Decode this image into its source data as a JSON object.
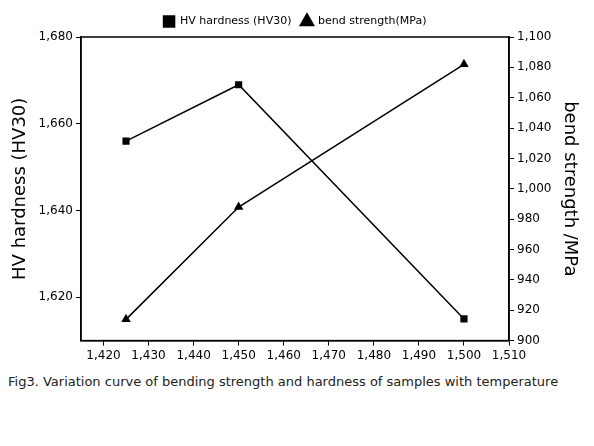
{
  "chart_data": {
    "type": "line",
    "title": "Fig3. Variation curve of bending strength and hardness of samples with temperature",
    "y_label": "HV hardness (HV30)",
    "y2_label": "bend strength /MPa",
    "x": [
      1425,
      1450,
      1500
    ],
    "xlim": [
      1415,
      1510
    ],
    "xticks": [
      1420,
      1430,
      1440,
      1450,
      1460,
      1470,
      1480,
      1490,
      1500,
      1510
    ],
    "ylim": [
      1610,
      1680
    ],
    "yticks": [
      1620,
      1640,
      1660,
      1680
    ],
    "y2lim": [
      900,
      1100
    ],
    "y2ticks": [
      900,
      920,
      940,
      960,
      980,
      1000,
      1020,
      1040,
      1060,
      1080,
      1100
    ],
    "series": [
      {
        "name": "HV hardness (HV30)",
        "color": "#000000",
        "marker": "square",
        "values": [
          1656,
          1669,
          1615
        ]
      },
      {
        "name": "bend strength(MPa)",
        "color": "#000000",
        "marker": "triangle",
        "axis": "y2",
        "values": [
          914,
          988,
          1082
        ]
      }
    ],
    "grid": false,
    "legend": "top"
  }
}
